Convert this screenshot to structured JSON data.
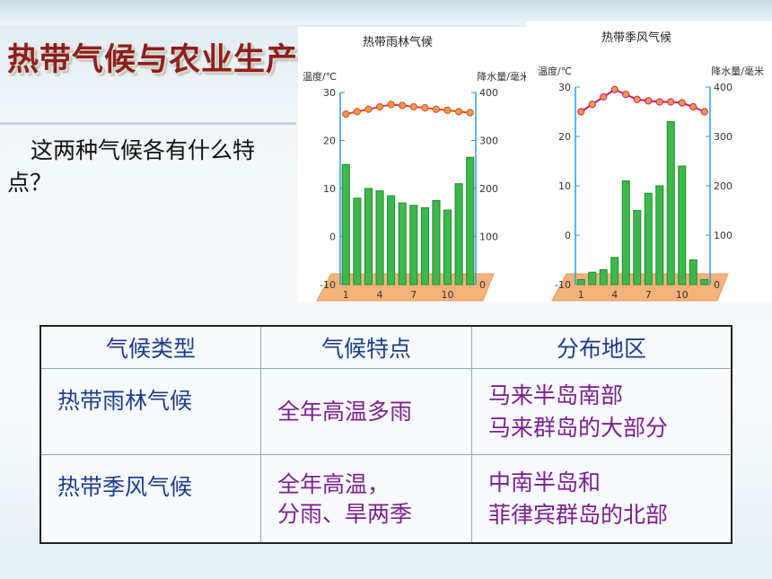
{
  "page": {
    "title": "热带气候与农业生产",
    "question": "这两种气候各有什么特点？"
  },
  "chart_data": [
    {
      "type": "bar",
      "title": "热带雨林气候",
      "y1label": "温度/℃",
      "y2label": "降水量/毫米",
      "y1lim": [
        -10,
        30
      ],
      "y2lim": [
        0,
        400
      ],
      "y1ticks": [
        "30",
        "20",
        "10",
        "0",
        "-10"
      ],
      "y2ticks": [
        "400",
        "300",
        "200",
        "100",
        "0"
      ],
      "xticks": [
        "1",
        "4",
        "7",
        "10"
      ],
      "categories": [
        "1",
        "2",
        "3",
        "4",
        "5",
        "6",
        "7",
        "8",
        "9",
        "10",
        "11",
        "12"
      ],
      "series": [
        {
          "kind": "bar",
          "axis": "y2",
          "values": [
            250,
            180,
            200,
            195,
            185,
            170,
            165,
            160,
            175,
            155,
            210,
            265
          ]
        },
        {
          "kind": "line",
          "axis": "y1",
          "values": [
            25.5,
            26,
            26.5,
            27,
            27.5,
            27.3,
            27,
            26.8,
            26.5,
            26.3,
            26,
            25.8
          ]
        }
      ],
      "colors": {
        "bar": "#3db84a",
        "line": "#d94a2a",
        "marker": "#f29a45"
      }
    },
    {
      "type": "bar",
      "title": "热带季风气候",
      "y1label": "温度/℃",
      "y2label": "降水量/毫米",
      "y1lim": [
        -10,
        30
      ],
      "y2lim": [
        0,
        400
      ],
      "y1ticks": [
        "30",
        "20",
        "10",
        "0",
        "-10"
      ],
      "y2ticks": [
        "400",
        "300",
        "200",
        "100",
        "0"
      ],
      "xticks": [
        "1",
        "4",
        "7",
        "10"
      ],
      "categories": [
        "1",
        "2",
        "3",
        "4",
        "5",
        "6",
        "7",
        "8",
        "9",
        "10",
        "11",
        "12"
      ],
      "series": [
        {
          "kind": "bar",
          "axis": "y2",
          "values": [
            10,
            25,
            30,
            55,
            210,
            150,
            185,
            200,
            330,
            240,
            50,
            10
          ]
        },
        {
          "kind": "line",
          "axis": "y1",
          "values": [
            25,
            26.5,
            28,
            29.5,
            28.5,
            27.5,
            27.2,
            27,
            27,
            26.8,
            26,
            25
          ]
        }
      ],
      "colors": {
        "bar": "#3db84a",
        "line": "#d8146a",
        "marker": "#e0a040"
      }
    }
  ],
  "table": {
    "headers": [
      "气候类型",
      "气候特点",
      "分布地区"
    ],
    "rows": [
      {
        "type": "热带雨林气候",
        "features": [
          "全年高温多雨"
        ],
        "regions": [
          "马来半岛南部",
          "马来群岛的大部分"
        ]
      },
      {
        "type": "热带季风气候",
        "features": [
          "全年高温，",
          "分雨、旱两季"
        ],
        "regions": [
          "中南半岛和",
          "菲律宾群岛的北部"
        ]
      }
    ]
  }
}
